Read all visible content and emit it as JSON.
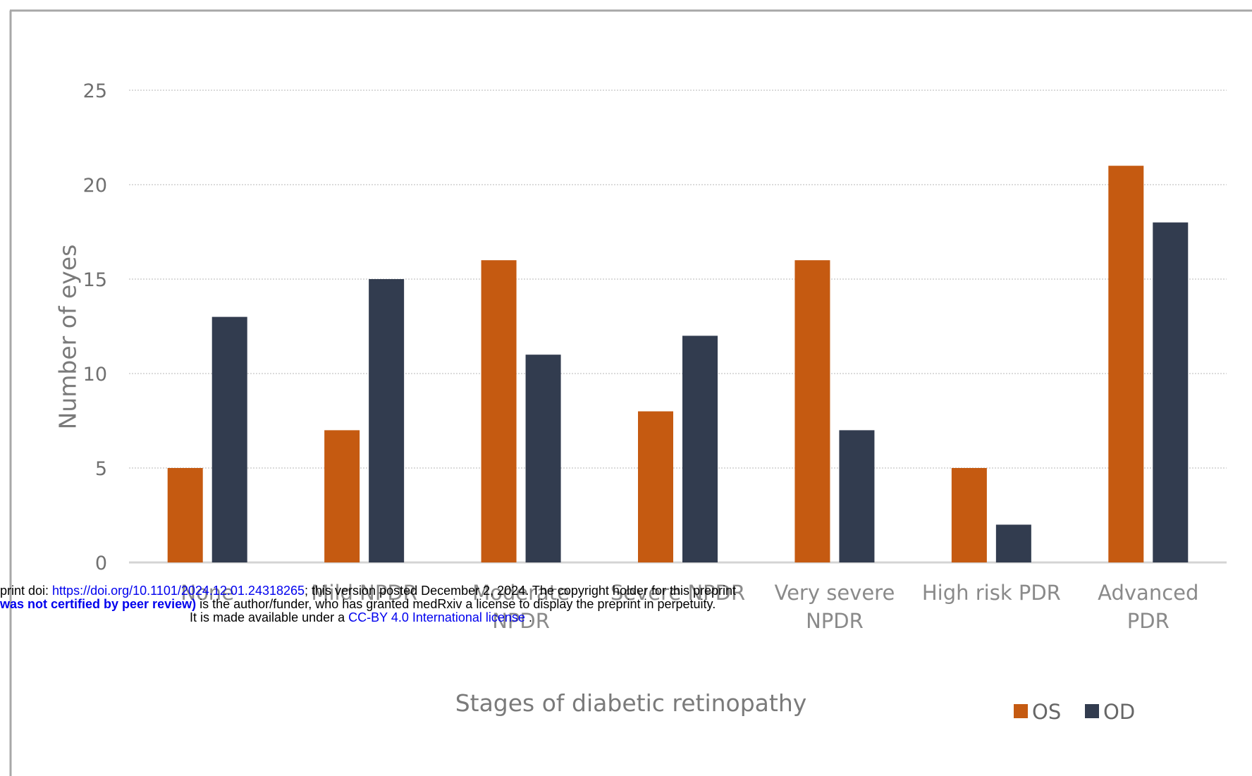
{
  "chart_data": {
    "type": "bar",
    "categories": [
      [
        "None"
      ],
      [
        "Mild NPDR"
      ],
      [
        "Moderate",
        "NPDR"
      ],
      [
        "Severe NPDR"
      ],
      [
        "Very severe",
        "NPDR"
      ],
      [
        "High risk PDR"
      ],
      [
        "Advanced",
        "PDR"
      ]
    ],
    "series": [
      {
        "name": "OS",
        "color": "#c55a11",
        "values": [
          5,
          7,
          16,
          8,
          16,
          5,
          21
        ]
      },
      {
        "name": "OD",
        "color": "#323c4f",
        "values": [
          13,
          15,
          11,
          12,
          7,
          2,
          18
        ]
      }
    ],
    "xlabel": "Stages of diabetic retinopathy",
    "ylabel": "Number of eyes",
    "ylim": [
      0,
      25
    ],
    "yticks": [
      0,
      5,
      10,
      15,
      20,
      25
    ],
    "grid": true,
    "legend": "bottom-right"
  },
  "preprint": {
    "line1_pre": "print doi: ",
    "line1_doi": "https://doi.org/10.1101/2024.12.01.24318265",
    "line1_post": "; this version posted December 2, 2024. The copyright holder for this preprint",
    "line2_bold": "was not certified by peer review)",
    "line2_post": " is the author/funder, who has granted medRxiv a license to display the preprint in perpetuity.",
    "line3_pre": "It is made available under a ",
    "line3_link": "CC-BY 4.0 International license",
    "line3_post": " ."
  }
}
